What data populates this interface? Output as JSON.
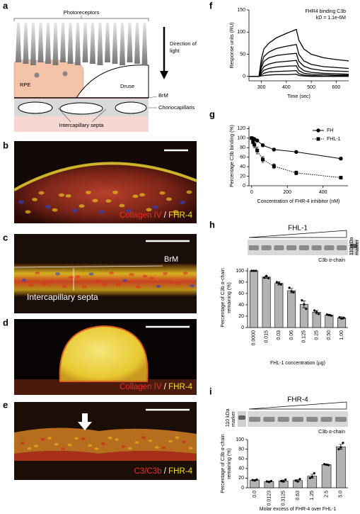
{
  "diagram": {
    "panel": "a",
    "photoreceptors": "Photoreceptors",
    "direction": [
      "Direction of",
      "light"
    ],
    "rpe": "RPE",
    "druse": "Druse",
    "brm": "BrM",
    "choriocapillaris": "Choriocapillaris",
    "septa": "Intercapillary septa"
  },
  "micrographs": [
    {
      "panel": "b",
      "caption": [
        {
          "text": "Collagen IV",
          "color": "#e8302a"
        },
        {
          "text": " / ",
          "color": "#ffffff"
        },
        {
          "text": "FHR-4",
          "color": "#f4e41c"
        }
      ]
    },
    {
      "panel": "c",
      "annotations": [
        "BrM",
        "Intercapillary septa"
      ]
    },
    {
      "panel": "d",
      "caption": [
        {
          "text": "Collagen IV",
          "color": "#e8302a"
        },
        {
          "text": " / ",
          "color": "#ffffff"
        },
        {
          "text": "FHR-4",
          "color": "#f4e41c"
        }
      ]
    },
    {
      "panel": "e",
      "caption": [
        {
          "text": "C3/C3b",
          "color": "#e8302a"
        },
        {
          "text": " / ",
          "color": "#ffffff"
        },
        {
          "text": "FHR-4",
          "color": "#f4e41c"
        }
      ]
    }
  ],
  "chart_data": [
    {
      "type": "line",
      "panel": "f",
      "title": "FHR4 binding C3b",
      "subtitle": "kD = 1.1e-6M",
      "x": [
        250,
        290,
        300,
        310,
        330,
        360,
        400,
        440,
        450,
        470,
        500,
        550,
        600,
        650
      ],
      "series": [
        {
          "color": "#000000",
          "values": [
            0,
            0,
            40,
            62,
            75,
            87,
            97,
            106,
            82,
            62,
            50,
            42,
            38,
            35
          ]
        },
        {
          "color": "#000000",
          "values": [
            0,
            0,
            28,
            45,
            55,
            63,
            68,
            72,
            50,
            35,
            27,
            22,
            20,
            18
          ]
        },
        {
          "color": "#000000",
          "values": [
            0,
            0,
            20,
            34,
            42,
            47,
            50,
            52,
            34,
            23,
            17,
            13,
            12,
            11
          ]
        },
        {
          "color": "#000000",
          "values": [
            0,
            0,
            13,
            22,
            28,
            32,
            34,
            36,
            22,
            13,
            9,
            7,
            6,
            5
          ]
        },
        {
          "color": "#000000",
          "values": [
            0,
            0,
            8,
            14,
            18,
            21,
            23,
            24,
            13,
            7,
            5,
            4,
            3,
            3
          ]
        },
        {
          "color": "#000000",
          "values": [
            0,
            0,
            4,
            7,
            10,
            11,
            12,
            13,
            6,
            3,
            2,
            1,
            1,
            1
          ]
        },
        {
          "color": "#000000",
          "values": [
            0,
            0,
            1,
            2,
            3,
            4,
            4,
            5,
            2,
            1,
            0,
            0,
            0,
            0
          ]
        }
      ],
      "xlim": [
        250,
        650
      ],
      "xticks": [
        300,
        400,
        500,
        600
      ],
      "ylim": [
        -10,
        150
      ],
      "yticks": [
        0,
        50,
        100,
        150
      ],
      "xlabel": "Time (sec)",
      "ylabel": "Response units (RU)"
    },
    {
      "type": "scatter",
      "panel": "g",
      "series": [
        {
          "name": "FH",
          "color": "#000000",
          "marker": "circle",
          "linestyle": "solid",
          "x": [
            0,
            7.8,
            15.6,
            31.25,
            62.5,
            125,
            250,
            500
          ],
          "values": [
            100,
            99,
            98,
            95,
            85,
            76,
            71,
            57
          ],
          "errors": [
            2,
            2,
            2,
            3,
            3,
            3,
            2,
            3
          ]
        },
        {
          "name": "FHL-1",
          "color": "#000000",
          "marker": "square",
          "linestyle": "dotted",
          "x": [
            0,
            7.8,
            15.6,
            31.25,
            62.5,
            125,
            250,
            500
          ],
          "values": [
            100,
            92,
            86,
            74,
            55,
            41,
            27,
            17
          ],
          "errors": [
            2,
            4,
            6,
            7,
            6,
            5,
            4,
            2
          ]
        }
      ],
      "xlim": [
        -15,
        540
      ],
      "xticks": [
        0,
        200,
        400
      ],
      "ylim": [
        0,
        125
      ],
      "yticks": [
        0,
        20,
        40,
        60,
        80,
        100,
        120
      ],
      "xlabel": "Concentration of FHR-4 inhibitor (nM)",
      "ylabel": "Percentage C3b binding (%)",
      "legend": "upper right"
    },
    {
      "type": "bar",
      "panel": "h",
      "gel_label": "FHL-1",
      "band_label": "C3b α-chain",
      "marker_label": [
        "110 kDa",
        "marker"
      ],
      "marker_side": "right",
      "categories": [
        "0.0000",
        "0.015",
        "0.03",
        "0.06",
        "0.125",
        "0.25",
        "0.50",
        "1.00"
      ],
      "values": [
        100,
        89,
        78,
        65,
        41,
        27,
        22,
        17
      ],
      "errors": [
        0,
        2,
        3,
        4,
        6,
        3,
        1,
        2
      ],
      "replicates": [
        [
          100,
          100,
          100
        ],
        [
          88,
          91,
          87
        ],
        [
          80,
          78,
          76
        ],
        [
          70,
          64,
          62
        ],
        [
          48,
          41,
          33
        ],
        [
          30,
          27,
          24
        ],
        [
          23,
          22,
          21
        ],
        [
          18,
          16,
          17
        ]
      ],
      "color": "#b3b3b3",
      "ylim": [
        0,
        105
      ],
      "yticks": [
        0,
        20,
        40,
        60,
        80,
        100
      ],
      "xlabel": "FHL-1 concentration (µg)",
      "ylabel": [
        "Percentage of C3b α-chain",
        "remaining (%)"
      ]
    },
    {
      "type": "bar",
      "panel": "i",
      "gel_label": "FHR-4",
      "band_label": "C3b α-chain",
      "marker_label": [
        "110 kDa",
        "marker"
      ],
      "marker_side": "left",
      "categories": [
        "0.0",
        "0.0123",
        "0.3125",
        "0.63",
        "1.25",
        "2.5",
        "5.0"
      ],
      "values": [
        16,
        13,
        14,
        15,
        24,
        48,
        85
      ],
      "errors": [
        1,
        1,
        2,
        2,
        4,
        1,
        5
      ],
      "replicates": [
        [
          16,
          15,
          17
        ],
        [
          13,
          12,
          14
        ],
        [
          14,
          13,
          17
        ],
        [
          15,
          13,
          18
        ],
        [
          20,
          23,
          30
        ],
        [
          49,
          48,
          47
        ],
        [
          80,
          84,
          93
        ]
      ],
      "color": "#b3b3b3",
      "ylim": [
        0,
        100
      ],
      "yticks": [
        0,
        20,
        40,
        60,
        80,
        100
      ],
      "xlabel": "Molar excess of FHR-4 over FHL-1",
      "ylabel": [
        "Percentage of C3b α-chain",
        "remaining (%)"
      ]
    }
  ]
}
